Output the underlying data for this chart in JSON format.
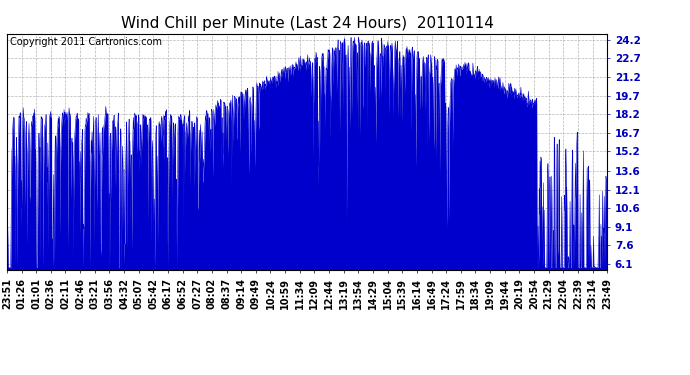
{
  "title": "Wind Chill per Minute (Last 24 Hours)  20110114",
  "copyright_text": "Copyright 2011 Cartronics.com",
  "yticks": [
    6.1,
    7.6,
    9.1,
    10.6,
    12.1,
    13.6,
    15.2,
    16.7,
    18.2,
    19.7,
    21.2,
    22.7,
    24.2
  ],
  "ymin": 5.6,
  "ymax": 24.7,
  "line_color": "#0000cc",
  "bg_color": "#ffffff",
  "plot_bg_color": "#ffffff",
  "grid_color": "#b0b0b0",
  "title_fontsize": 11,
  "tick_fontsize": 7.5,
  "copyright_fontsize": 7,
  "xtick_labels": [
    "23:51",
    "01:26",
    "01:01",
    "02:36",
    "02:11",
    "02:46",
    "03:21",
    "03:56",
    "04:32",
    "05:07",
    "05:42",
    "06:17",
    "06:52",
    "07:27",
    "08:02",
    "08:37",
    "09:14",
    "09:49",
    "10:24",
    "10:59",
    "11:34",
    "12:09",
    "12:44",
    "13:19",
    "13:54",
    "14:29",
    "15:04",
    "15:39",
    "16:14",
    "16:49",
    "17:24",
    "17:59",
    "18:34",
    "19:09",
    "19:44",
    "20:19",
    "20:54",
    "21:29",
    "22:04",
    "22:39",
    "23:14",
    "23:49"
  ]
}
